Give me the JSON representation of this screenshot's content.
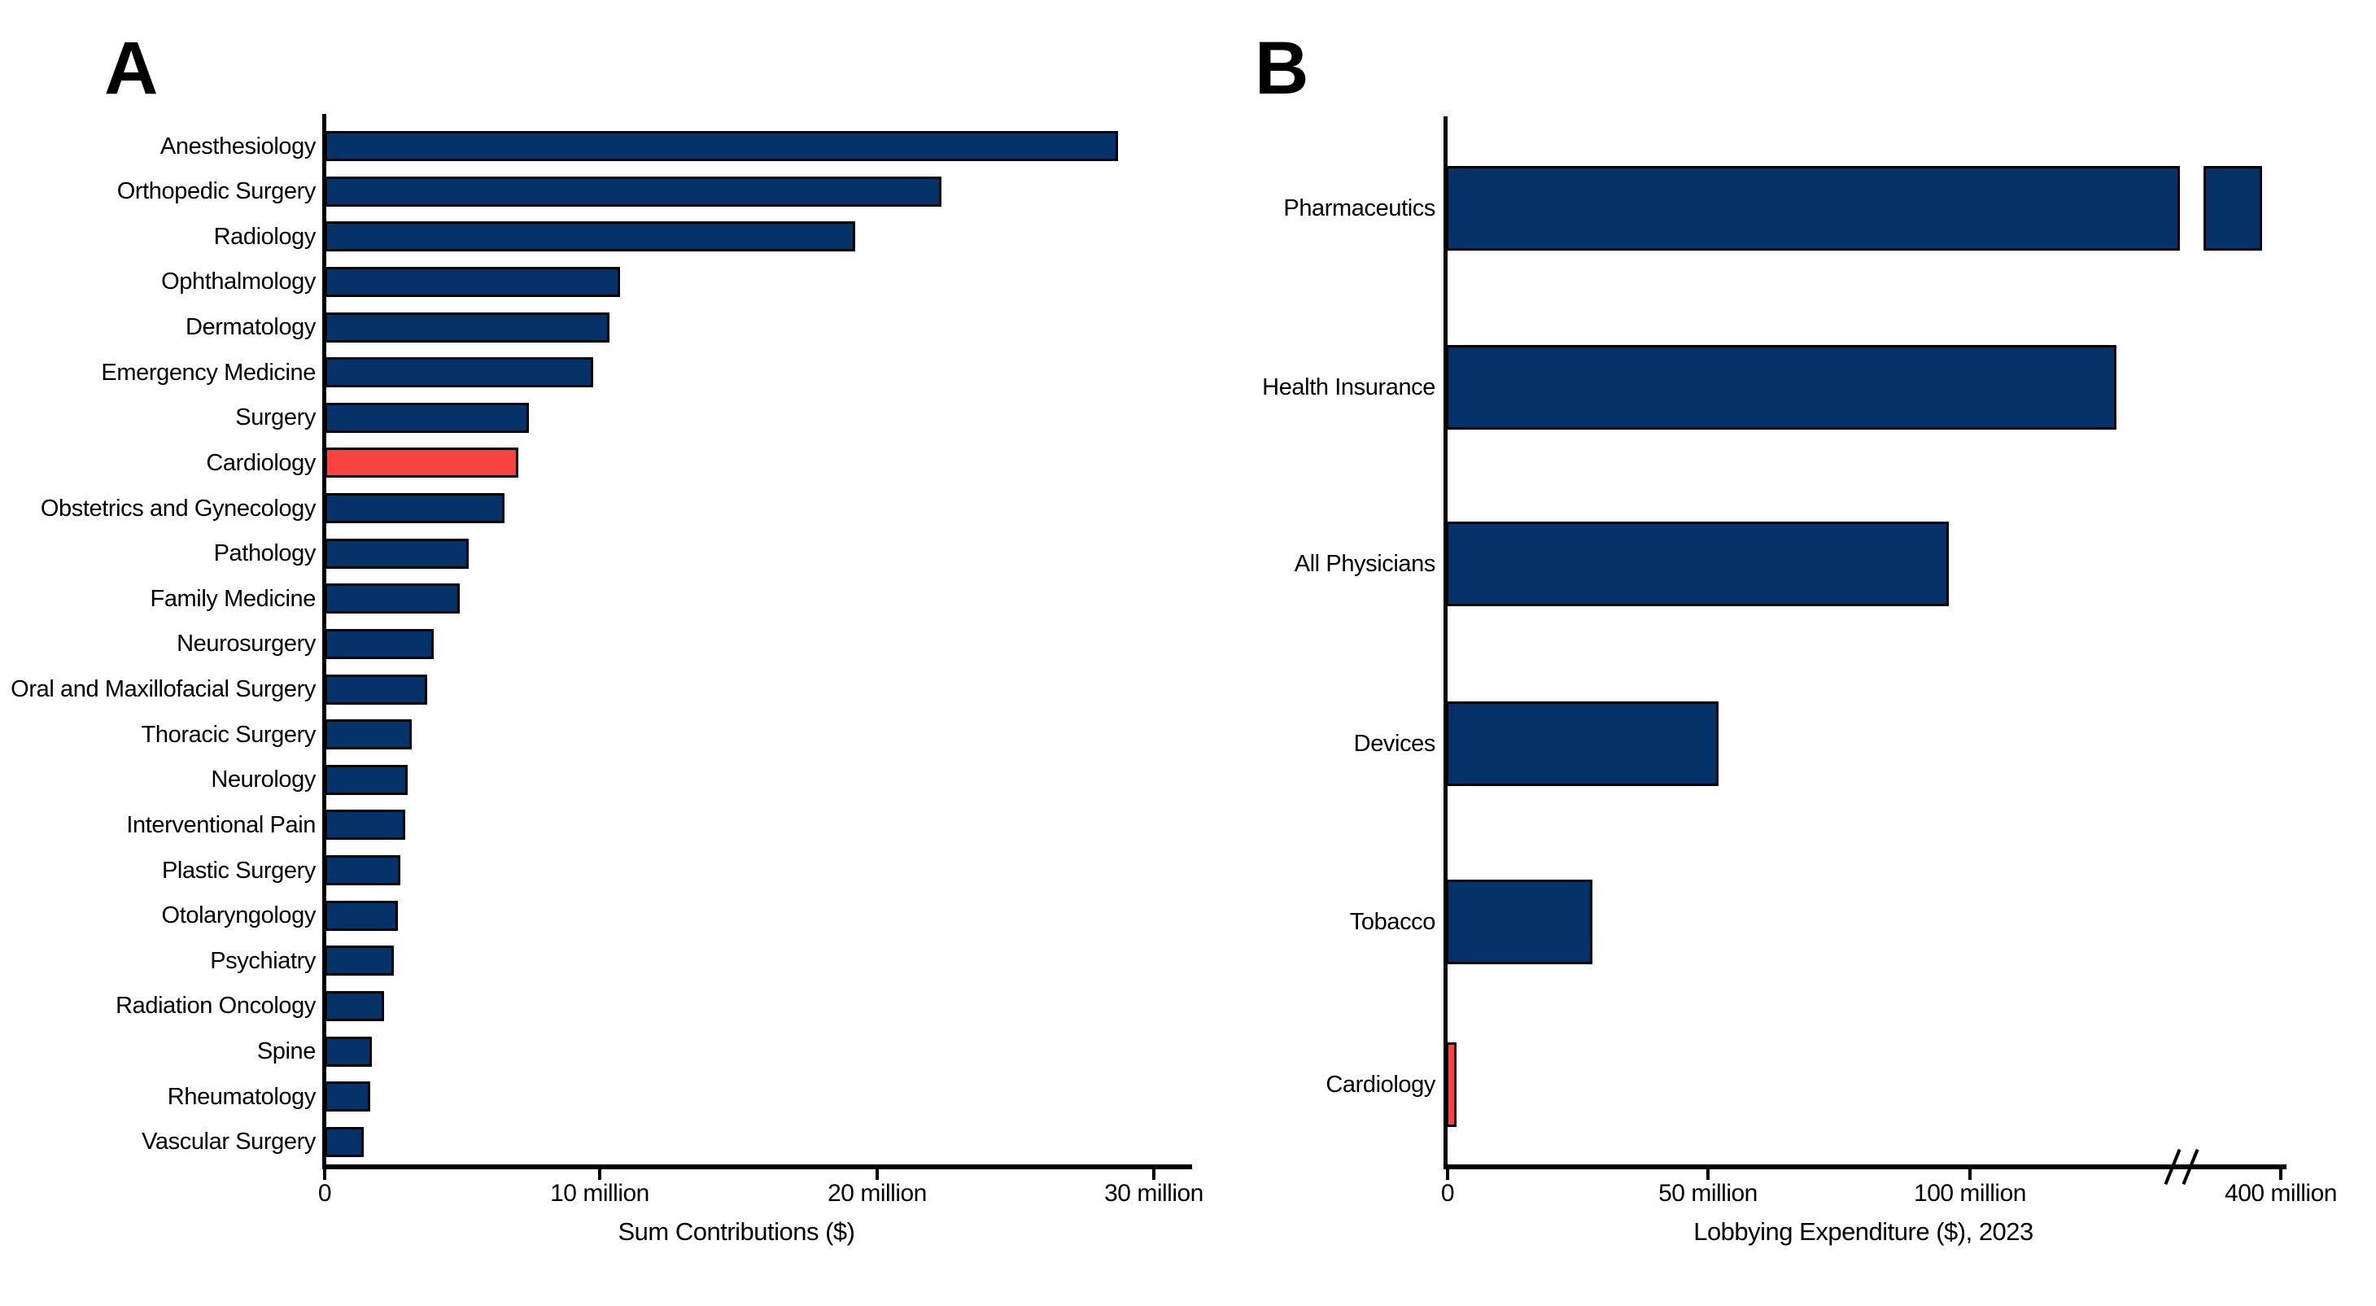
{
  "colors": {
    "bar": "#053369",
    "highlight": "#F94341",
    "axis": "#000000",
    "background": "#FFFFFF"
  },
  "chart_data": [
    {
      "panel_label": "A",
      "type": "bar",
      "orientation": "horizontal",
      "xlabel": "Sum Contributions ($)",
      "unit": "USD, millions",
      "categories": [
        "Anesthesiology",
        "Orthopedic Surgery",
        "Radiology",
        "Ophthalmology",
        "Dermatology",
        "Emergency Medicine",
        "Surgery",
        "Cardiology",
        "Obstetrics and Gynecology",
        "Pathology",
        "Family Medicine",
        "Neurosurgery",
        "Oral and Maxillofacial Surgery",
        "Thoracic Surgery",
        "Neurology",
        "Interventional Pain",
        "Plastic Surgery",
        "Otolaryngology",
        "Psychiatry",
        "Radiation Oncology",
        "Spine",
        "Rheumatology",
        "Vascular Surgery"
      ],
      "values": [
        28.7,
        22.3,
        19.2,
        10.7,
        10.3,
        9.7,
        7.4,
        7.0,
        6.5,
        5.2,
        4.9,
        3.95,
        3.7,
        3.15,
        3.0,
        2.9,
        2.75,
        2.65,
        2.5,
        2.15,
        1.7,
        1.65,
        1.4
      ],
      "highlight": {
        "category": "Cardiology",
        "index": 7
      },
      "xlim": [
        0,
        30
      ],
      "x_ticks": [
        {
          "value": 0,
          "label": "0"
        },
        {
          "value": 10,
          "label": "10 million"
        },
        {
          "value": 20,
          "label": "20 million"
        },
        {
          "value": 30,
          "label": "30 million"
        }
      ],
      "grid": false,
      "legend": false,
      "bar_color": "#053369",
      "highlight_color": "#F94341"
    },
    {
      "panel_label": "B",
      "type": "bar",
      "orientation": "horizontal",
      "xlabel": "Lobbying Expenditure ($), 2023",
      "unit": "USD, millions",
      "categories": [
        "Pharmaceutics",
        "Health Insurance",
        "All Physicians",
        "Devices",
        "Tobacco",
        "Cardiology"
      ],
      "values": [
        380,
        128,
        96,
        52,
        28,
        2
      ],
      "highlight": {
        "category": "Cardiology",
        "index": 5
      },
      "xlim": [
        0,
        400
      ],
      "x_ticks": [
        {
          "value": 0,
          "label": "0"
        },
        {
          "value": 50,
          "label": "50 million"
        },
        {
          "value": 100,
          "label": "100 million"
        },
        {
          "value": 400,
          "label": "400 million"
        }
      ],
      "axis_break": {
        "present": true,
        "between_values": [
          140,
          330
        ],
        "bar_with_break": "Pharmaceutics"
      },
      "grid": false,
      "legend": false,
      "bar_color": "#053369",
      "highlight_color": "#F94341"
    }
  ]
}
